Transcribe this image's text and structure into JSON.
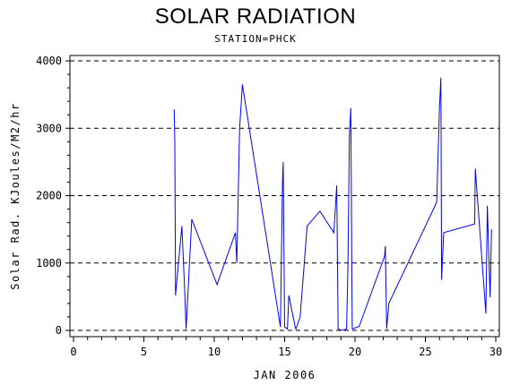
{
  "chart_data": {
    "type": "line",
    "title": "SOLAR RADIATION",
    "subtitle": "STATION=PHCK",
    "xlabel": "JAN 2006",
    "ylabel": "Solar Rad. KJoules/M2/hr",
    "xlim": [
      0,
      30
    ],
    "ylim": [
      0,
      4000
    ],
    "x_ticks": [
      0,
      5,
      10,
      15,
      20,
      25,
      30
    ],
    "y_ticks": [
      0,
      1000,
      2000,
      3000,
      4000
    ],
    "grid": "horizontal-dashed",
    "colors": {
      "series": "#0000ff",
      "grid": "#000000",
      "axis": "#000000"
    },
    "series": [
      {
        "points": [
          [
            7.15,
            3280
          ],
          [
            7.2,
            2800
          ],
          [
            7.25,
            520
          ],
          [
            7.7,
            1550
          ],
          [
            7.9,
            600
          ],
          [
            8.0,
            20
          ],
          [
            8.4,
            1650
          ],
          [
            10.2,
            680
          ],
          [
            11.5,
            1450
          ],
          [
            11.6,
            1000
          ],
          [
            11.8,
            3000
          ],
          [
            12.0,
            3650
          ],
          [
            14.7,
            50
          ],
          [
            14.85,
            2200
          ],
          [
            14.9,
            2500
          ],
          [
            15.0,
            50
          ],
          [
            15.2,
            20
          ],
          [
            15.3,
            520
          ],
          [
            15.75,
            50
          ],
          [
            15.8,
            20
          ],
          [
            16.1,
            200
          ],
          [
            16.6,
            1550
          ],
          [
            17.5,
            1770
          ],
          [
            18.5,
            1450
          ],
          [
            18.7,
            2150
          ],
          [
            18.8,
            20
          ],
          [
            19.1,
            0
          ],
          [
            19.4,
            20
          ],
          [
            19.5,
            1000
          ],
          [
            19.6,
            2900
          ],
          [
            19.7,
            3300
          ],
          [
            19.8,
            20
          ],
          [
            20.3,
            60
          ],
          [
            22.1,
            1100
          ],
          [
            22.15,
            1250
          ],
          [
            22.25,
            20
          ],
          [
            22.4,
            400
          ],
          [
            25.8,
            1900
          ],
          [
            26.0,
            3300
          ],
          [
            26.1,
            3750
          ],
          [
            26.15,
            750
          ],
          [
            26.3,
            1450
          ],
          [
            28.5,
            1580
          ],
          [
            28.55,
            2400
          ],
          [
            29.3,
            250
          ],
          [
            29.4,
            1850
          ],
          [
            29.6,
            490
          ],
          [
            29.7,
            1500
          ]
        ]
      }
    ]
  }
}
